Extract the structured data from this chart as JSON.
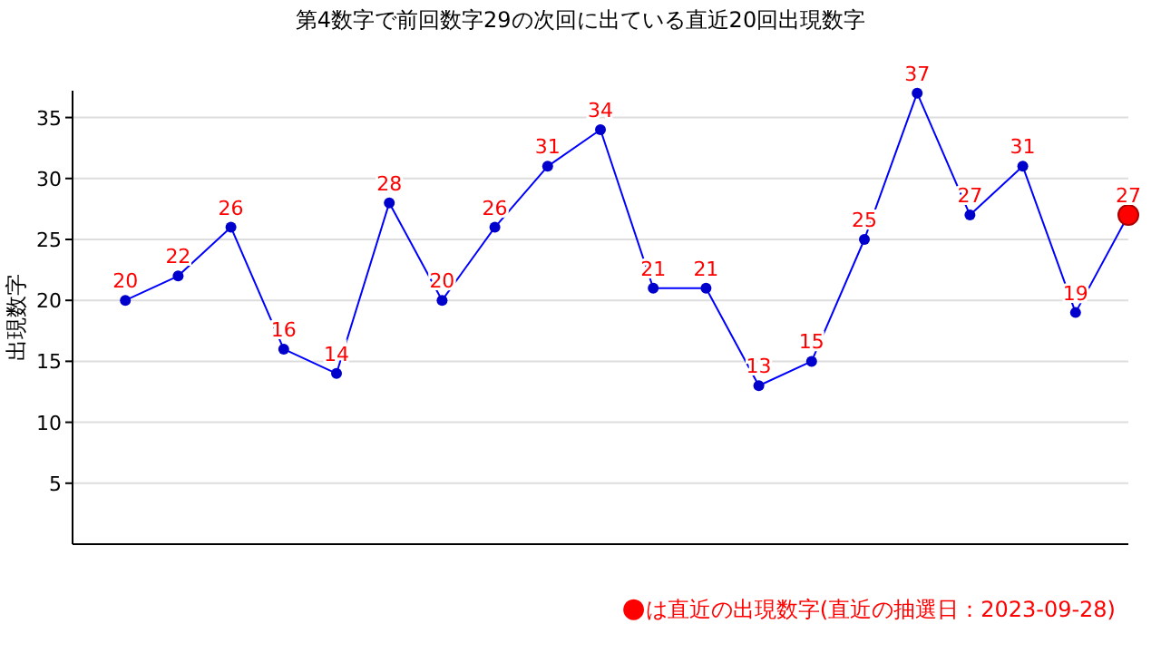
{
  "chart_data": {
    "type": "line",
    "title": "第4数字で前回数字29の次回に出ている直近20回出現数字",
    "ylabel": "出現数字",
    "categories": [
      null,
      null,
      null,
      null,
      null,
      null,
      null,
      null,
      null,
      null,
      null,
      null,
      null,
      null,
      null,
      null,
      null,
      null,
      null,
      null
    ],
    "series": [
      {
        "color": "#0000ff",
        "colors": [
          "#0000cc",
          "#0000cc",
          "#0000cc",
          "#0000cc",
          "#0000cc",
          "#0000cc",
          "#0000cc",
          "#0000cc",
          "#0000cc",
          "#0000cc",
          "#0000cc",
          "#0000cc",
          "#0000cc",
          "#0000cc",
          "#0000cc",
          "#0000cc",
          "#0000cc",
          "#0000cc",
          "#0000cc",
          "#ff0000"
        ],
        "values": [
          20,
          22,
          26,
          16,
          14,
          28,
          20,
          26,
          31,
          34,
          21,
          21,
          13,
          15,
          25,
          37,
          27,
          31,
          19,
          27
        ]
      }
    ],
    "ylim": [
      0,
      37.2
    ],
    "yticks": [
      5,
      10,
      15,
      20,
      25,
      30,
      35
    ],
    "grid": "y",
    "data_labels": true,
    "marker": "circle",
    "line_style": "solid",
    "annotations": [
      "●は直近の出現数字(直近の抽選日：2023-09-28)"
    ]
  }
}
